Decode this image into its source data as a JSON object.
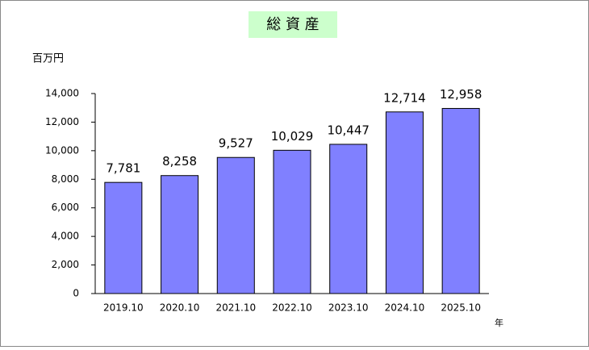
{
  "chart_data": {
    "type": "bar",
    "title": "総 資 産",
    "y_unit": "百万円",
    "x_unit": "年",
    "categories": [
      "2019.10",
      "2020.10",
      "2021.10",
      "2022.10",
      "2023.10",
      "2024.10",
      "2025.10"
    ],
    "values": [
      7781,
      8258,
      9527,
      10029,
      10447,
      12714,
      12958
    ],
    "value_labels": [
      "7,781",
      "8,258",
      "9,527",
      "10,029",
      "10,447",
      "12,714",
      "12,958"
    ],
    "color": "#8080ff",
    "ylim": [
      0,
      14000
    ],
    "yticks": [
      0,
      {
        "value": 2000,
        "label": "2,000"
      },
      {
        "value": 4000,
        "label": "4,000"
      },
      {
        "value": 6000,
        "label": "6,000"
      },
      {
        "value": 8000,
        "label": "8,000"
      },
      {
        "value": 10000,
        "label": "10,000"
      },
      {
        "value": 12000,
        "label": "12,000"
      },
      {
        "value": 14000,
        "label": "14,000"
      }
    ],
    "grid": false
  }
}
